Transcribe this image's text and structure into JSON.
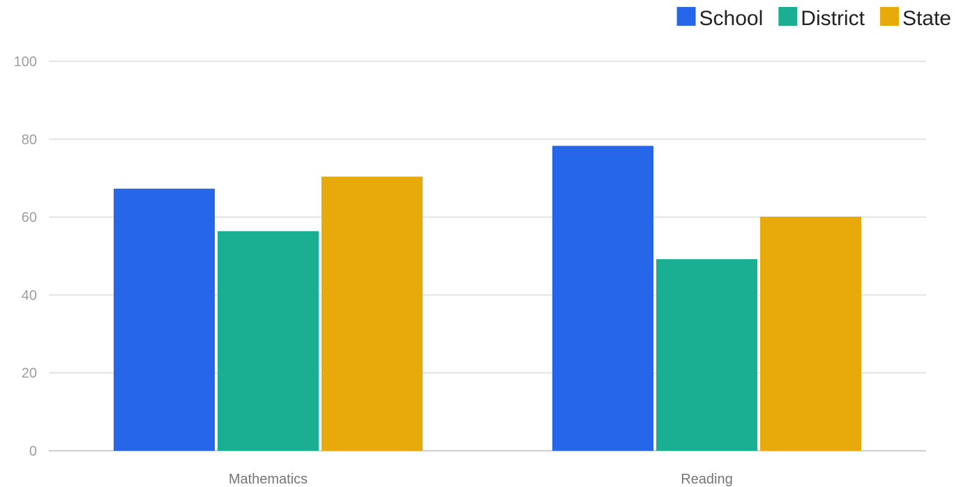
{
  "chart_data": {
    "type": "bar",
    "categories": [
      "Mathematics",
      "Reading"
    ],
    "series": [
      {
        "name": "School",
        "values": [
          67.3,
          78.3
        ],
        "color": "#2567e8"
      },
      {
        "name": "District",
        "values": [
          56.4,
          49.2
        ],
        "color": "#1aaf92"
      },
      {
        "name": "State",
        "values": [
          70.4,
          60.1
        ],
        "color": "#e8a90a"
      }
    ],
    "ylim": [
      0,
      100
    ],
    "yticks": [
      0,
      20,
      40,
      60,
      80,
      100
    ],
    "grid": true,
    "legend_position": "top-right",
    "title": "",
    "xlabel": "",
    "ylabel": ""
  }
}
